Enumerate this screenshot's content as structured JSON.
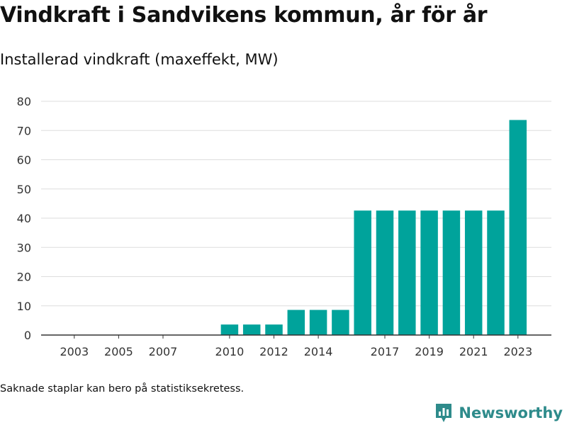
{
  "header": {
    "title": "Vindkraft i Sandvikens kommun, år för år",
    "subtitle": "Installerad vindkraft (maxeffekt, MW)"
  },
  "footer": {
    "note": "Saknade staplar kan bero på statistiksekretess.",
    "brand": "Newsworthy"
  },
  "colors": {
    "bar": "#00a39b",
    "grid": "#dddddd",
    "axis": "#333333",
    "brand": "#2e8b8b"
  },
  "chart_data": {
    "type": "bar",
    "title": "Vindkraft i Sandvikens kommun, år för år",
    "subtitle": "Installerad vindkraft (maxeffekt, MW)",
    "xlabel": "",
    "ylabel": "",
    "ylim": [
      0,
      80
    ],
    "yticks": [
      0,
      10,
      20,
      30,
      40,
      50,
      60,
      70,
      80
    ],
    "xticks": [
      "2003",
      "2005",
      "2007",
      "2010",
      "2012",
      "2014",
      "2017",
      "2019",
      "2021",
      "2023"
    ],
    "grid": true,
    "categories": [
      "2002",
      "2003",
      "2004",
      "2005",
      "2006",
      "2007",
      "2008",
      "2009",
      "2010",
      "2011",
      "2012",
      "2013",
      "2014",
      "2015",
      "2016",
      "2017",
      "2018",
      "2019",
      "2020",
      "2021",
      "2022",
      "2023"
    ],
    "values": [
      0,
      0,
      0,
      0,
      0,
      0,
      0,
      0,
      3.6,
      3.6,
      3.6,
      8.6,
      8.6,
      8.6,
      42.6,
      42.6,
      42.6,
      42.6,
      42.6,
      42.6,
      42.6,
      73.6
    ]
  }
}
